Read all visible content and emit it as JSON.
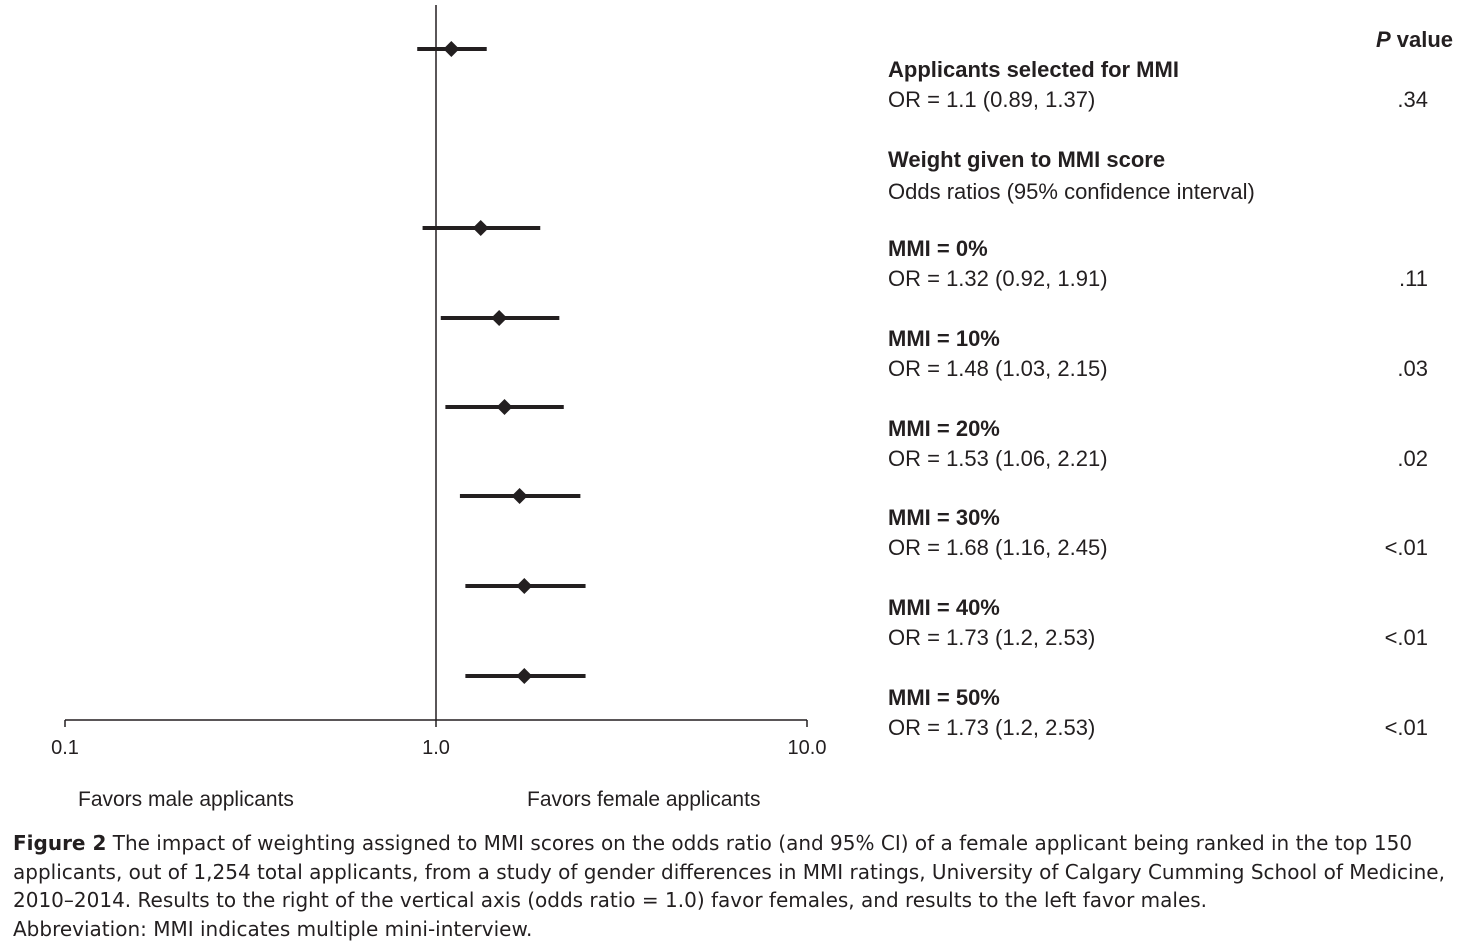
{
  "chart_data": {
    "type": "forest",
    "x_scale": "log",
    "xlim": [
      0.1,
      10.0
    ],
    "x_ticks": [
      0.1,
      1.0,
      10.0
    ],
    "x_tick_labels": [
      "0.1",
      "1.0",
      "10.0"
    ],
    "reference_line": 1.0,
    "left_label": "Favors male applicants",
    "right_label": "Favors female applicants",
    "p_value_header_italic": "P",
    "p_value_header_rest": " value",
    "group_header": {
      "title": "Weight given to MMI score",
      "subtitle": "Odds ratios  (95% confidence interval)"
    },
    "rows": [
      {
        "label": "Applicants selected for MMI",
        "or": 1.1,
        "lower": 0.89,
        "upper": 1.37,
        "or_text": "OR = 1.1 (0.89, 1.37)",
        "p": ".34"
      },
      {
        "label": "MMI = 0%",
        "or": 1.32,
        "lower": 0.92,
        "upper": 1.91,
        "or_text": "OR = 1.32 (0.92, 1.91)",
        "p": ".11"
      },
      {
        "label": "MMI = 10%",
        "or": 1.48,
        "lower": 1.03,
        "upper": 2.15,
        "or_text": "OR = 1.48 (1.03, 2.15)",
        "p": ".03"
      },
      {
        "label": "MMI = 20%",
        "or": 1.53,
        "lower": 1.06,
        "upper": 2.21,
        "or_text": "OR = 1.53 (1.06, 2.21)",
        "p": ".02"
      },
      {
        "label": "MMI = 30%",
        "or": 1.68,
        "lower": 1.16,
        "upper": 2.45,
        "or_text": "OR = 1.68 (1.16, 2.45)",
        "p": "<.01"
      },
      {
        "label": "MMI = 40%",
        "or": 1.73,
        "lower": 1.2,
        "upper": 2.53,
        "or_text": "OR = 1.73 (1.2, 2.53)",
        "p": "<.01"
      },
      {
        "label": "MMI = 50%",
        "or": 1.73,
        "lower": 1.2,
        "upper": 2.53,
        "or_text": "OR = 1.73 (1.2, 2.53)",
        "p": "<.01"
      }
    ]
  },
  "caption": {
    "label": "Figure 2",
    "text": " The impact of weighting assigned to MMI scores on the odds ratio (and 95% CI) of a female applicant being ranked in the top 150 applicants, out of 1,254 total applicants, from a study of gender differences in MMI ratings, University of Calgary Cumming School of Medicine, 2010–2014. Results to the right of the vertical axis (odds ratio = 1.0) favor females, and results to the left favor males.",
    "abbreviation": "Abbreviation: MMI indicates multiple mini-interview."
  }
}
